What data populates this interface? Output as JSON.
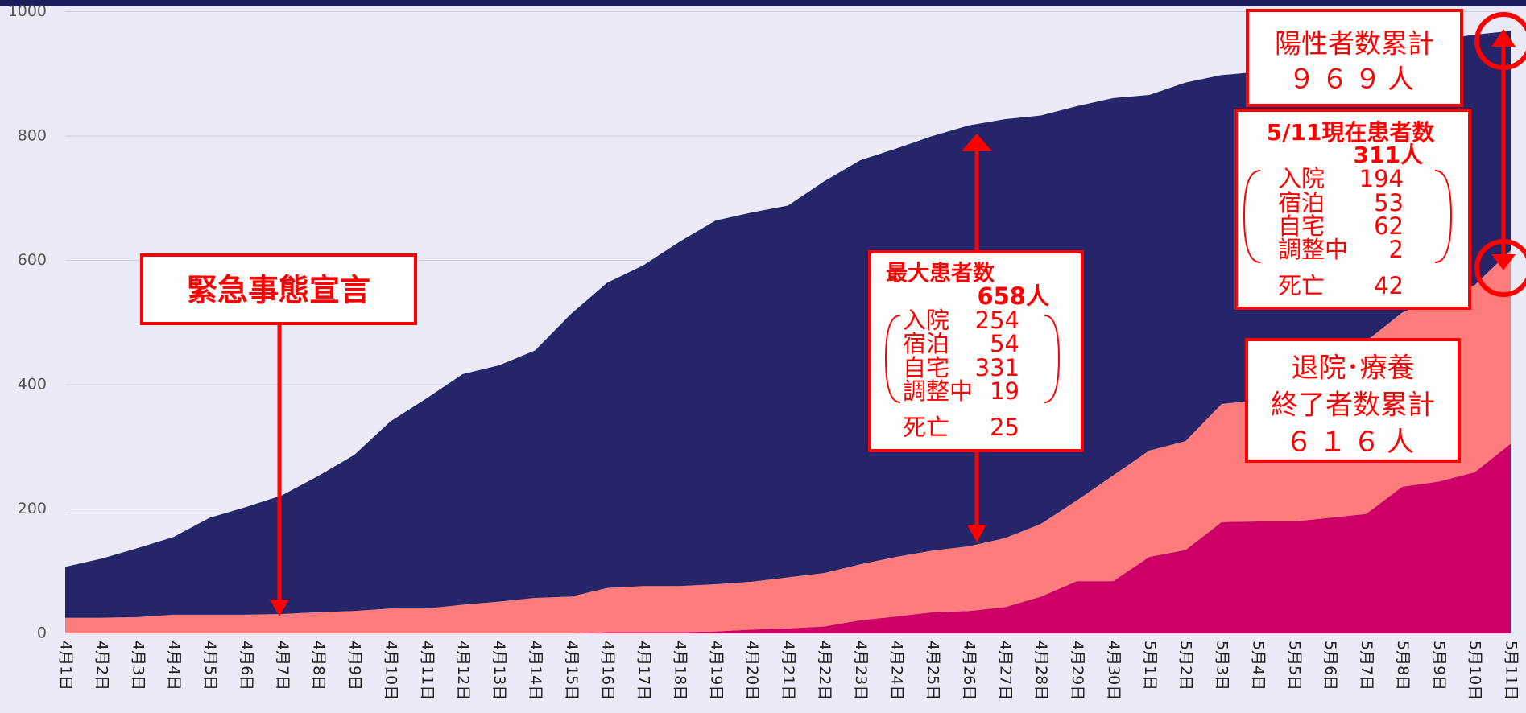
{
  "chart_data": {
    "type": "stacked_area",
    "categories": [
      "4月1日",
      "4月2日",
      "4月3日",
      "4月4日",
      "4月5日",
      "4月6日",
      "4月7日",
      "4月8日",
      "4月9日",
      "4月10日",
      "4月11日",
      "4月12日",
      "4月13日",
      "4月14日",
      "4月15日",
      "4月16日",
      "4月17日",
      "4月18日",
      "4月19日",
      "4月20日",
      "4月21日",
      "4月22日",
      "4月23日",
      "4月24日",
      "4月25日",
      "4月26日",
      "4月27日",
      "4月28日",
      "4月29日",
      "4月30日",
      "5月1日",
      "5月2日",
      "5月3日",
      "5月4日",
      "5月5日",
      "5月6日",
      "5月7日",
      "5月8日",
      "5月9日",
      "5月10日",
      "5月11日"
    ],
    "series": [
      {
        "color": "#cc0066",
        "values": [
          0,
          0,
          0,
          0,
          0,
          0,
          0,
          0,
          0,
          0,
          0,
          0,
          0,
          0,
          0,
          2,
          2,
          2,
          3,
          6,
          8,
          11,
          21,
          27,
          34,
          36,
          42,
          59,
          84,
          84,
          123,
          134,
          179,
          180,
          180,
          186,
          192,
          236,
          244,
          259,
          305
        ]
      },
      {
        "color": "#ff7c7c",
        "values": [
          25,
          25,
          26,
          30,
          30,
          30,
          31,
          34,
          36,
          40,
          40,
          46,
          51,
          57,
          59,
          71,
          74,
          74,
          76,
          77,
          82,
          86,
          90,
          96,
          99,
          104,
          111,
          117,
          130,
          170,
          171,
          175,
          190,
          195,
          220,
          244,
          278,
          280,
          296,
          301,
          311
        ]
      },
      {
        "color": "#262569",
        "values": [
          82,
          95,
          111,
          125,
          156,
          173,
          191,
          219,
          251,
          301,
          338,
          371,
          380,
          398,
          455,
          491,
          516,
          554,
          585,
          594,
          598,
          630,
          650,
          657,
          667,
          677,
          674,
          657,
          634,
          607,
          572,
          577,
          529,
          528,
          510,
          490,
          460,
          429,
          415,
          403,
          353
        ]
      }
    ],
    "ylim": [
      0,
      1000
    ],
    "yticks": [
      0,
      200,
      400,
      600,
      800,
      1000
    ],
    "grid": true,
    "annotations": {
      "declaration": "緊急事態宣言",
      "max": {
        "title": "最大患者数",
        "total": "658人",
        "items": [
          [
            "入院",
            "254"
          ],
          [
            "宿泊",
            "54"
          ],
          [
            "自宅",
            "331"
          ],
          [
            "調整中",
            "19"
          ]
        ],
        "death": [
          "死亡",
          "25"
        ]
      },
      "positive": {
        "title": "陽性者数累計",
        "total": "９６９人"
      },
      "current": {
        "title": "5/11現在患者数",
        "total": "311人",
        "items": [
          [
            "入院",
            "194"
          ],
          [
            "宿泊",
            "53"
          ],
          [
            "自宅",
            "62"
          ],
          [
            "調整中",
            "2"
          ]
        ],
        "death": [
          "死亡",
          "42"
        ]
      },
      "discharged": {
        "lines": [
          "退院･療養",
          "終了者数累計",
          "６１６人"
        ]
      }
    }
  }
}
